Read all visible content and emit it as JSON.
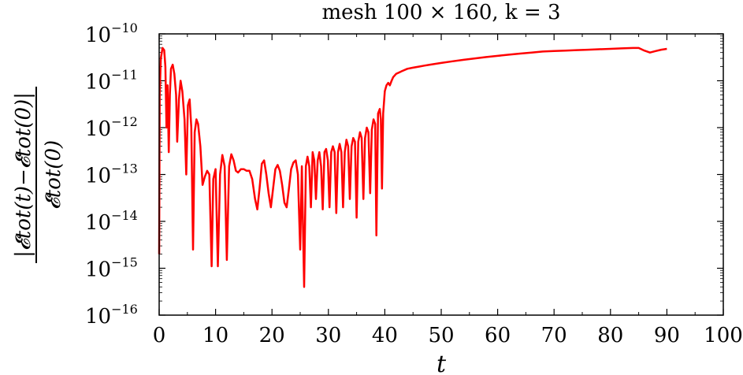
{
  "chart_data": {
    "type": "line",
    "title": "mesh 100 × 160, k = 3",
    "xlabel": "t",
    "ylabel": {
      "numerator": "|𝓔tot(t)−𝓔tot(0)|",
      "denominator": "𝓔tot(0)"
    },
    "xlim": [
      0,
      100
    ],
    "ylim": [
      1e-16,
      1e-10
    ],
    "yscale": "log",
    "grid": false,
    "x_ticks": [
      "0",
      "10",
      "20",
      "30",
      "40",
      "50",
      "60",
      "70",
      "80",
      "90",
      "100"
    ],
    "y_ticks": [
      {
        "base": "10",
        "exp": "−10"
      },
      {
        "base": "10",
        "exp": "−11"
      },
      {
        "base": "10",
        "exp": "−12"
      },
      {
        "base": "10",
        "exp": "−13"
      },
      {
        "base": "10",
        "exp": "−14"
      },
      {
        "base": "10",
        "exp": "−15"
      },
      {
        "base": "10",
        "exp": "−16"
      }
    ],
    "series": [
      {
        "color": "#ff0000",
        "points": [
          [
            0.0,
            2e-15
          ],
          [
            0.1,
            5e-12
          ],
          [
            0.3,
            3e-11
          ],
          [
            0.6,
            5e-11
          ],
          [
            0.9,
            4.5e-11
          ],
          [
            1.1,
            2e-11
          ],
          [
            1.3,
            1e-12
          ],
          [
            1.5,
            8e-12
          ],
          [
            1.7,
            3e-13
          ],
          [
            1.9,
            5e-12
          ],
          [
            2.1,
            1.8e-11
          ],
          [
            2.4,
            2.2e-11
          ],
          [
            2.7,
            1.4e-11
          ],
          [
            3.0,
            5e-12
          ],
          [
            3.2,
            5e-13
          ],
          [
            3.5,
            4e-12
          ],
          [
            3.8,
            1e-11
          ],
          [
            4.1,
            6e-12
          ],
          [
            4.5,
            1.5e-12
          ],
          [
            4.8,
            1e-13
          ],
          [
            5.1,
            3e-12
          ],
          [
            5.4,
            4e-12
          ],
          [
            5.7,
            1e-12
          ],
          [
            6.0,
            2.5e-15
          ],
          [
            6.3,
            8e-13
          ],
          [
            6.6,
            1.5e-12
          ],
          [
            6.9,
            1.2e-12
          ],
          [
            7.3,
            4e-13
          ],
          [
            7.7,
            6e-14
          ],
          [
            8.1,
            9e-14
          ],
          [
            8.5,
            1.2e-13
          ],
          [
            8.9,
            1e-13
          ],
          [
            9.3,
            1.1e-15
          ],
          [
            9.6,
            8e-14
          ],
          [
            10.0,
            1.3e-13
          ],
          [
            10.4,
            1.1e-15
          ],
          [
            10.8,
            1e-13
          ],
          [
            11.2,
            2.6e-13
          ],
          [
            11.6,
            1.5e-13
          ],
          [
            12.0,
            1.5e-15
          ],
          [
            12.4,
            1.5e-13
          ],
          [
            12.8,
            2.7e-13
          ],
          [
            13.2,
            2e-13
          ],
          [
            13.6,
            1.2e-13
          ],
          [
            14.0,
            1.1e-13
          ],
          [
            14.5,
            1.3e-13
          ],
          [
            15.0,
            1.3e-13
          ],
          [
            15.5,
            1.2e-13
          ],
          [
            16.0,
            1.2e-13
          ],
          [
            16.5,
            8e-14
          ],
          [
            17.0,
            3e-14
          ],
          [
            17.4,
            1.8e-14
          ],
          [
            17.8,
            5e-14
          ],
          [
            18.2,
            1.7e-13
          ],
          [
            18.6,
            2e-13
          ],
          [
            19.0,
            1e-13
          ],
          [
            19.4,
            4e-14
          ],
          [
            19.8,
            2e-14
          ],
          [
            20.2,
            5e-14
          ],
          [
            20.6,
            1.3e-13
          ],
          [
            21.0,
            1.6e-13
          ],
          [
            21.4,
            1.2e-13
          ],
          [
            21.8,
            6e-14
          ],
          [
            22.2,
            2.5e-14
          ],
          [
            22.6,
            2e-14
          ],
          [
            23.0,
            5e-14
          ],
          [
            23.4,
            1.3e-13
          ],
          [
            23.8,
            1.8e-13
          ],
          [
            24.2,
            2e-13
          ],
          [
            24.6,
            1e-13
          ],
          [
            25.0,
            2.5e-15
          ],
          [
            25.3,
            1.5e-13
          ],
          [
            25.7,
            4e-16
          ],
          [
            26.0,
            1.5e-13
          ],
          [
            26.3,
            2.4e-13
          ],
          [
            26.6,
            1.5e-13
          ],
          [
            26.9,
            2e-14
          ],
          [
            27.2,
            3e-13
          ],
          [
            27.5,
            2e-13
          ],
          [
            27.8,
            3e-14
          ],
          [
            28.1,
            2e-13
          ],
          [
            28.4,
            3e-13
          ],
          [
            28.7,
            1.5e-13
          ],
          [
            29.0,
            1.8e-14
          ],
          [
            29.3,
            3e-13
          ],
          [
            29.6,
            3.5e-13
          ],
          [
            29.9,
            2e-13
          ],
          [
            30.2,
            2e-14
          ],
          [
            30.5,
            3e-13
          ],
          [
            30.8,
            4e-13
          ],
          [
            31.1,
            3e-13
          ],
          [
            31.4,
            1.5e-14
          ],
          [
            31.7,
            3e-13
          ],
          [
            32.0,
            4.5e-13
          ],
          [
            32.3,
            3e-13
          ],
          [
            32.6,
            2e-14
          ],
          [
            32.9,
            3e-13
          ],
          [
            33.2,
            5.5e-13
          ],
          [
            33.5,
            4e-13
          ],
          [
            33.8,
            3e-14
          ],
          [
            34.1,
            4e-13
          ],
          [
            34.4,
            6e-13
          ],
          [
            34.7,
            5e-13
          ],
          [
            35.0,
            1.2e-14
          ],
          [
            35.3,
            5e-13
          ],
          [
            35.6,
            8e-13
          ],
          [
            35.9,
            6e-13
          ],
          [
            36.2,
            3e-14
          ],
          [
            36.5,
            6e-13
          ],
          [
            36.8,
            1e-12
          ],
          [
            37.1,
            8e-13
          ],
          [
            37.4,
            4e-14
          ],
          [
            37.7,
            9e-13
          ],
          [
            38.0,
            1.5e-12
          ],
          [
            38.3,
            1.2e-12
          ],
          [
            38.5,
            5e-15
          ],
          [
            38.8,
            2e-12
          ],
          [
            39.1,
            2.5e-12
          ],
          [
            39.3,
            1.5e-12
          ],
          [
            39.5,
            5e-14
          ],
          [
            39.7,
            2e-12
          ],
          [
            40.0,
            6e-12
          ],
          [
            40.3,
            8e-12
          ],
          [
            40.6,
            9e-12
          ],
          [
            40.9,
            8e-12
          ],
          [
            41.2,
            1e-11
          ],
          [
            41.5,
            1.2e-11
          ],
          [
            42.0,
            1.4e-11
          ],
          [
            43.0,
            1.6e-11
          ],
          [
            44.0,
            1.8e-11
          ],
          [
            45.0,
            1.9e-11
          ],
          [
            46.0,
            2e-11
          ],
          [
            47.0,
            2.1e-11
          ],
          [
            48.0,
            2.2e-11
          ],
          [
            49.0,
            2.3e-11
          ],
          [
            50.0,
            2.4e-11
          ],
          [
            52.0,
            2.6e-11
          ],
          [
            54.0,
            2.8e-11
          ],
          [
            56.0,
            3e-11
          ],
          [
            58.0,
            3.2e-11
          ],
          [
            60.0,
            3.4e-11
          ],
          [
            62.0,
            3.6e-11
          ],
          [
            64.0,
            3.8e-11
          ],
          [
            66.0,
            4e-11
          ],
          [
            68.0,
            4.2e-11
          ],
          [
            70.0,
            4.3e-11
          ],
          [
            72.0,
            4.4e-11
          ],
          [
            74.0,
            4.5e-11
          ],
          [
            76.0,
            4.6e-11
          ],
          [
            78.0,
            4.7e-11
          ],
          [
            80.0,
            4.8e-11
          ],
          [
            82.0,
            4.9e-11
          ],
          [
            84.0,
            5e-11
          ],
          [
            85.0,
            5e-11
          ],
          [
            86.0,
            4.4e-11
          ],
          [
            87.0,
            4e-11
          ],
          [
            88.0,
            4.3e-11
          ],
          [
            89.0,
            4.6e-11
          ],
          [
            90.0,
            4.8e-11
          ]
        ]
      }
    ]
  }
}
